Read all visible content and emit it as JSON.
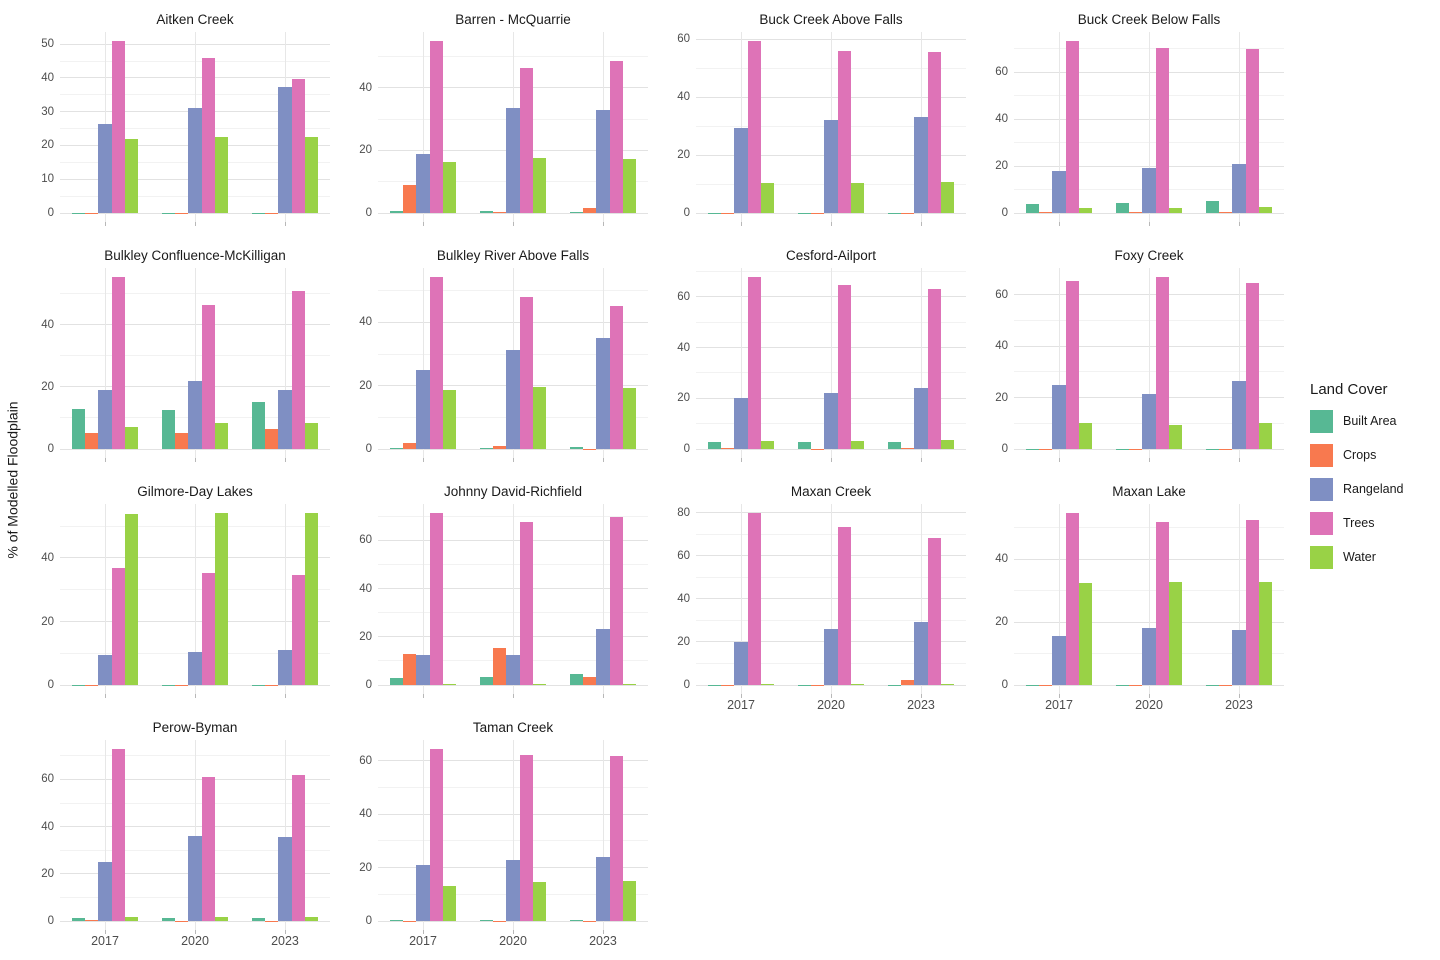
{
  "figure": {
    "y_axis_title": "% of Modelled Floodplain",
    "legend": {
      "title": "Land Cover",
      "items": [
        {
          "label": "Built Area",
          "color": "#57B894"
        },
        {
          "label": "Crops",
          "color": "#F8794F"
        },
        {
          "label": "Rangeland",
          "color": "#7F8FC3"
        },
        {
          "label": "Trees",
          "color": "#DE73B7"
        },
        {
          "label": "Water",
          "color": "#99D246"
        }
      ]
    },
    "grid_major_color": "#e2e2e2",
    "grid_minor_color": "#f2f2f2"
  },
  "chart_data": {
    "type": "bar",
    "subtype": "dodged-faceted",
    "title": "",
    "xlabel": "",
    "ylabel": "% of Modelled Floodplain",
    "categories": [
      "2017",
      "2020",
      "2023"
    ],
    "series_names": [
      "Built Area",
      "Crops",
      "Rangeland",
      "Trees",
      "Water"
    ],
    "series_colors": [
      "#57B894",
      "#F8794F",
      "#7F8FC3",
      "#DE73B7",
      "#99D246"
    ],
    "legend_position": "right",
    "grid": true,
    "facets": [
      {
        "title": "Aitken Creek",
        "ticks": [
          0,
          10,
          20,
          30,
          40,
          50
        ],
        "ymax": 53.6,
        "series": [
          {
            "name": "Built Area",
            "values": [
              0.1,
              0.1,
              0.1
            ]
          },
          {
            "name": "Crops",
            "values": [
              0.1,
              0.1,
              0.1
            ]
          },
          {
            "name": "Rangeland",
            "values": [
              26.5,
              31,
              37.3
            ]
          },
          {
            "name": "Trees",
            "values": [
              51,
              46,
              39.7
            ]
          },
          {
            "name": "Water",
            "values": [
              21.8,
              22.5,
              22.6
            ]
          }
        ]
      },
      {
        "title": "Barren - McQuarrie",
        "ticks": [
          0,
          20,
          40
        ],
        "ymax": 57.8,
        "series": [
          {
            "name": "Built Area",
            "values": [
              0.5,
              0.7,
              0.4
            ]
          },
          {
            "name": "Crops",
            "values": [
              9,
              0.3,
              1.7
            ]
          },
          {
            "name": "Rangeland",
            "values": [
              19,
              33.5,
              33
            ]
          },
          {
            "name": "Trees",
            "values": [
              55,
              46.2,
              48.4
            ]
          },
          {
            "name": "Water",
            "values": [
              16.4,
              17.5,
              17.2
            ]
          }
        ]
      },
      {
        "title": "Buck Creek Above Falls",
        "ticks": [
          0,
          20,
          40,
          60
        ],
        "ymax": 62.5,
        "series": [
          {
            "name": "Built Area",
            "values": [
              0.1,
              0.1,
              0.1
            ]
          },
          {
            "name": "Crops",
            "values": [
              0.1,
              0.1,
              0.1
            ]
          },
          {
            "name": "Rangeland",
            "values": [
              29.5,
              32,
              33.2
            ]
          },
          {
            "name": "Trees",
            "values": [
              59.5,
              56,
              55.6
            ]
          },
          {
            "name": "Water",
            "values": [
              10.5,
              10.2,
              10.8
            ]
          }
        ]
      },
      {
        "title": "Buck Creek Below Falls",
        "ticks": [
          0,
          20,
          40,
          60
        ],
        "ymax": 77.2,
        "series": [
          {
            "name": "Built Area",
            "values": [
              3.8,
              4.2,
              5.2
            ]
          },
          {
            "name": "Crops",
            "values": [
              0.4,
              0.4,
              0.3
            ]
          },
          {
            "name": "Rangeland",
            "values": [
              18,
              19,
              20.8
            ]
          },
          {
            "name": "Trees",
            "values": [
              73.5,
              70.2,
              70.1
            ]
          },
          {
            "name": "Water",
            "values": [
              2,
              2.2,
              2.4
            ]
          }
        ]
      },
      {
        "title": "Bulkley Confluence-McKilligan",
        "ticks": [
          0,
          20,
          40
        ],
        "ymax": 58.3,
        "series": [
          {
            "name": "Built Area",
            "values": [
              13,
              12.5,
              15
            ]
          },
          {
            "name": "Crops",
            "values": [
              5,
              5,
              6.5
            ]
          },
          {
            "name": "Rangeland",
            "values": [
              19,
              21.8,
              19
            ]
          },
          {
            "name": "Trees",
            "values": [
              55.5,
              46.5,
              51
            ]
          },
          {
            "name": "Water",
            "values": [
              7,
              8.5,
              8.3
            ]
          }
        ]
      },
      {
        "title": "Bulkley River Above Falls",
        "ticks": [
          0,
          20,
          40
        ],
        "ymax": 57.2,
        "series": [
          {
            "name": "Built Area",
            "values": [
              0.4,
              0.3,
              0.6
            ]
          },
          {
            "name": "Crops",
            "values": [
              1.8,
              1,
              0.1
            ]
          },
          {
            "name": "Rangeland",
            "values": [
              25,
              31.3,
              35
            ]
          },
          {
            "name": "Trees",
            "values": [
              54.5,
              48,
              45.3
            ]
          },
          {
            "name": "Water",
            "values": [
              18.8,
              19.5,
              19.4
            ]
          }
        ]
      },
      {
        "title": "Cesford-Ailport",
        "ticks": [
          0,
          20,
          40,
          60
        ],
        "ymax": 71.4,
        "series": [
          {
            "name": "Built Area",
            "values": [
              2.7,
              2.6,
              2.9
            ]
          },
          {
            "name": "Crops",
            "values": [
              0.5,
              0.1,
              0.4
            ]
          },
          {
            "name": "Rangeland",
            "values": [
              20,
              22,
              24
            ]
          },
          {
            "name": "Trees",
            "values": [
              68,
              64.7,
              63
            ]
          },
          {
            "name": "Water",
            "values": [
              3.3,
              3.1,
              3.4
            ]
          }
        ]
      },
      {
        "title": "Foxy Creek",
        "ticks": [
          0,
          20,
          40,
          60
        ],
        "ymax": 70.4,
        "series": [
          {
            "name": "Built Area",
            "values": [
              0.1,
              0.1,
              0.1
            ]
          },
          {
            "name": "Crops",
            "values": [
              0.1,
              0.1,
              0.1
            ]
          },
          {
            "name": "Rangeland",
            "values": [
              25,
              21.5,
              26.5
            ]
          },
          {
            "name": "Trees",
            "values": [
              65.5,
              67,
              64.5
            ]
          },
          {
            "name": "Water",
            "values": [
              10,
              9.2,
              10
            ]
          }
        ]
      },
      {
        "title": "Gilmore-Day Lakes",
        "ticks": [
          0,
          20,
          40
        ],
        "ymax": 57.0,
        "series": [
          {
            "name": "Built Area",
            "values": [
              0.1,
              0.1,
              0.1
            ]
          },
          {
            "name": "Crops",
            "values": [
              0.1,
              0.1,
              0.1
            ]
          },
          {
            "name": "Rangeland",
            "values": [
              9.3,
              10.3,
              11
            ]
          },
          {
            "name": "Trees",
            "values": [
              37,
              35.3,
              34.8
            ]
          },
          {
            "name": "Water",
            "values": [
              54,
              54.3,
              54.3
            ]
          }
        ]
      },
      {
        "title": "Johnny David-Richfield",
        "ticks": [
          0,
          20,
          40,
          60
        ],
        "ymax": 75.1,
        "series": [
          {
            "name": "Built Area",
            "values": [
              2.8,
              3.3,
              4.4
            ]
          },
          {
            "name": "Crops",
            "values": [
              13,
              15.3,
              3.5
            ]
          },
          {
            "name": "Rangeland",
            "values": [
              12.6,
              12.5,
              23.3
            ]
          },
          {
            "name": "Trees",
            "values": [
              71.5,
              67.8,
              69.8
            ]
          },
          {
            "name": "Water",
            "values": [
              0.3,
              0.4,
              0.5
            ]
          }
        ]
      },
      {
        "title": "Maxan Creek",
        "ticks": [
          0,
          20,
          40,
          60,
          80
        ],
        "ymax": 84,
        "series": [
          {
            "name": "Built Area",
            "values": [
              0.1,
              0.1,
              0.1
            ]
          },
          {
            "name": "Crops",
            "values": [
              0.1,
              0.1,
              2.2
            ]
          },
          {
            "name": "Rangeland",
            "values": [
              20,
              26,
              29.3
            ]
          },
          {
            "name": "Trees",
            "values": [
              80,
              73.5,
              68.3
            ]
          },
          {
            "name": "Water",
            "values": [
              0.5,
              0.5,
              0.6
            ]
          }
        ]
      },
      {
        "title": "Maxan Lake",
        "ticks": [
          0,
          20,
          40
        ],
        "ymax": 57.5,
        "series": [
          {
            "name": "Built Area",
            "values": [
              0.1,
              0.1,
              0.1
            ]
          },
          {
            "name": "Crops",
            "values": [
              0.1,
              0.1,
              0.1
            ]
          },
          {
            "name": "Rangeland",
            "values": [
              15.6,
              18.1,
              17.6
            ]
          },
          {
            "name": "Trees",
            "values": [
              54.8,
              51.7,
              52.5
            ]
          },
          {
            "name": "Water",
            "values": [
              32.5,
              32.7,
              32.6
            ]
          }
        ]
      },
      {
        "title": "Perow-Byman",
        "ticks": [
          0,
          20,
          40,
          60
        ],
        "ymax": 76.7,
        "series": [
          {
            "name": "Built Area",
            "values": [
              1.3,
              1.3,
              1.3
            ]
          },
          {
            "name": "Crops",
            "values": [
              0.3,
              0.1,
              0.1
            ]
          },
          {
            "name": "Rangeland",
            "values": [
              24.8,
              36.2,
              35.7
            ]
          },
          {
            "name": "Trees",
            "values": [
              73,
              61,
              62
            ]
          },
          {
            "name": "Water",
            "values": [
              1.8,
              1.8,
              1.8
            ]
          }
        ]
      },
      {
        "title": "Taman Creek",
        "ticks": [
          0,
          20,
          40,
          60
        ],
        "ymax": 67.7,
        "series": [
          {
            "name": "Built Area",
            "values": [
              0.3,
              0.2,
              0.4
            ]
          },
          {
            "name": "Crops",
            "values": [
              0.1,
              0.1,
              0.1
            ]
          },
          {
            "name": "Rangeland",
            "values": [
              21,
              23,
              23.8
            ]
          },
          {
            "name": "Trees",
            "values": [
              64.5,
              62,
              61.8
            ]
          },
          {
            "name": "Water",
            "values": [
              13,
              14.5,
              14.9
            ]
          }
        ]
      }
    ]
  }
}
